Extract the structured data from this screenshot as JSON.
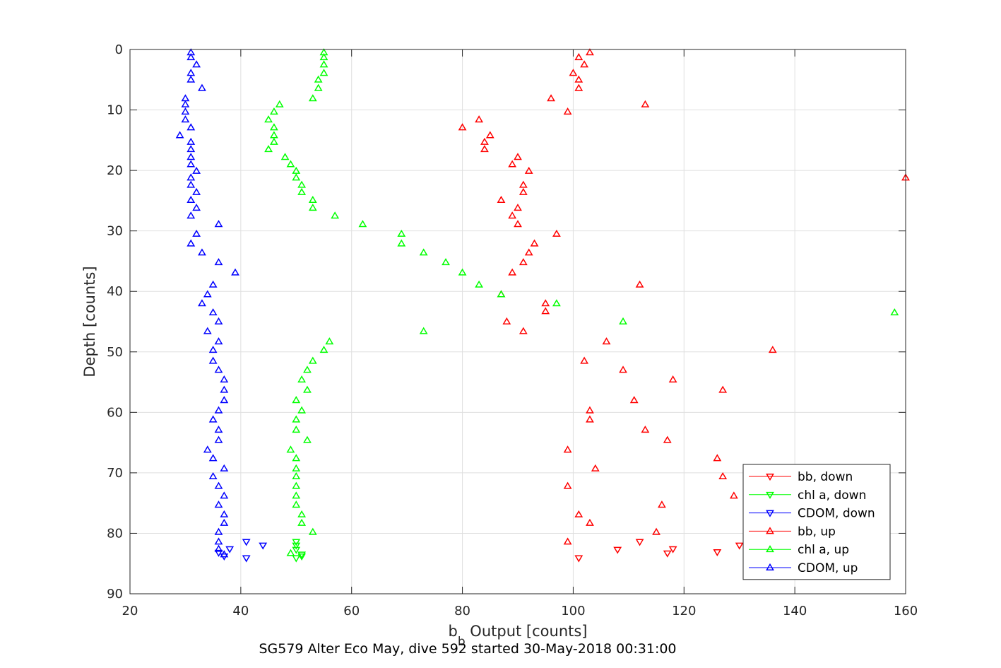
{
  "chart_data": {
    "type": "scatter",
    "title": "",
    "xlabel": {
      "main": "b",
      "sub": "b",
      "rest": " Output [counts]"
    },
    "ylabel": "Depth [counts]",
    "caption": "SG579 Alter Eco May, dive 592 started 30-May-2018 00:31:00",
    "xlim": [
      20,
      160
    ],
    "ylim": [
      0,
      90
    ],
    "y_reversed": true,
    "grid": true,
    "xticks": [
      "20",
      "40",
      "60",
      "80",
      "100",
      "120",
      "140",
      "160"
    ],
    "yticks": [
      "0",
      "10",
      "20",
      "30",
      "40",
      "50",
      "60",
      "70",
      "80",
      "90"
    ],
    "legend_position": "bottom-right",
    "series": [
      {
        "name": "bb, down",
        "color": "#ff0000",
        "marker": "triangle-down",
        "points": [
          [
            101,
            84.1
          ],
          [
            108,
            82.7
          ],
          [
            112,
            81.4
          ],
          [
            118,
            82.6
          ],
          [
            117,
            83.3
          ],
          [
            126,
            83.1
          ],
          [
            130,
            82
          ]
        ]
      },
      {
        "name": "chl a, down",
        "color": "#00ff00",
        "marker": "triangle-down",
        "points": [
          [
            50,
            84.1
          ],
          [
            51,
            83.5
          ],
          [
            50,
            82.7
          ],
          [
            50,
            82
          ],
          [
            50,
            81.4
          ],
          [
            51,
            83.8
          ]
        ]
      },
      {
        "name": "CDOM, down",
        "color": "#0000ff",
        "marker": "triangle-down",
        "points": [
          [
            41,
            84.1
          ],
          [
            44,
            82
          ],
          [
            38,
            82.6
          ],
          [
            41,
            81.4
          ],
          [
            37,
            83.8
          ],
          [
            36,
            83.2
          ]
        ]
      },
      {
        "name": "bb, up",
        "color": "#ff0000",
        "marker": "triangle-up",
        "points": [
          [
            103,
            0.5
          ],
          [
            101,
            1.3
          ],
          [
            102,
            2.5
          ],
          [
            100,
            3.9
          ],
          [
            101,
            5
          ],
          [
            101,
            6.4
          ],
          [
            96,
            8.1
          ],
          [
            113,
            9.1
          ],
          [
            99,
            10.3
          ],
          [
            83,
            11.6
          ],
          [
            80,
            12.9
          ],
          [
            85,
            14.2
          ],
          [
            84,
            15.3
          ],
          [
            84,
            16.5
          ],
          [
            90,
            17.8
          ],
          [
            89,
            19
          ],
          [
            92,
            20.1
          ],
          [
            160,
            21.2
          ],
          [
            91,
            22.4
          ],
          [
            91,
            23.6
          ],
          [
            87,
            24.9
          ],
          [
            90,
            26.2
          ],
          [
            89,
            27.5
          ],
          [
            90,
            28.9
          ],
          [
            97,
            30.5
          ],
          [
            93,
            32.1
          ],
          [
            92,
            33.6
          ],
          [
            91,
            35.2
          ],
          [
            89,
            36.9
          ],
          [
            112,
            38.9
          ],
          [
            87,
            40.5
          ],
          [
            95,
            42
          ],
          [
            95,
            43.3
          ],
          [
            88,
            45
          ],
          [
            91,
            46.6
          ],
          [
            106,
            48.3
          ],
          [
            136,
            49.7
          ],
          [
            102,
            51.5
          ],
          [
            109,
            53
          ],
          [
            118,
            54.6
          ],
          [
            127,
            56.3
          ],
          [
            111,
            58
          ],
          [
            103,
            59.7
          ],
          [
            103,
            61.2
          ],
          [
            113,
            62.9
          ],
          [
            117,
            64.6
          ],
          [
            99,
            66.2
          ],
          [
            126,
            67.6
          ],
          [
            104,
            69.3
          ],
          [
            127,
            70.6
          ],
          [
            99,
            72.2
          ],
          [
            129,
            73.8
          ],
          [
            116,
            75.3
          ],
          [
            101,
            76.9
          ],
          [
            103,
            78.3
          ],
          [
            115,
            79.8
          ],
          [
            99,
            81.4
          ]
        ]
      },
      {
        "name": "chl a, up",
        "color": "#00ff00",
        "marker": "triangle-up",
        "points": [
          [
            55,
            0.5
          ],
          [
            55,
            1.3
          ],
          [
            55,
            2.5
          ],
          [
            55,
            3.9
          ],
          [
            54,
            5
          ],
          [
            54,
            6.4
          ],
          [
            53,
            8.1
          ],
          [
            47,
            9.1
          ],
          [
            46,
            10.3
          ],
          [
            45,
            11.6
          ],
          [
            46,
            12.9
          ],
          [
            46,
            14.2
          ],
          [
            46,
            15.3
          ],
          [
            45,
            16.5
          ],
          [
            48,
            17.8
          ],
          [
            49,
            19
          ],
          [
            50,
            20.1
          ],
          [
            50,
            21.2
          ],
          [
            51,
            22.4
          ],
          [
            51,
            23.6
          ],
          [
            53,
            24.9
          ],
          [
            53,
            26.2
          ],
          [
            57,
            27.5
          ],
          [
            62,
            28.9
          ],
          [
            69,
            30.5
          ],
          [
            69,
            32.1
          ],
          [
            73,
            33.6
          ],
          [
            77,
            35.2
          ],
          [
            80,
            36.9
          ],
          [
            83,
            38.9
          ],
          [
            87,
            40.5
          ],
          [
            97,
            42
          ],
          [
            158,
            43.5
          ],
          [
            109,
            45
          ],
          [
            73,
            46.6
          ],
          [
            56,
            48.3
          ],
          [
            55,
            49.7
          ],
          [
            53,
            51.5
          ],
          [
            52,
            53
          ],
          [
            51,
            54.6
          ],
          [
            52,
            56.3
          ],
          [
            50,
            58
          ],
          [
            51,
            59.7
          ],
          [
            50,
            61.2
          ],
          [
            50,
            62.9
          ],
          [
            52,
            64.6
          ],
          [
            49,
            66.2
          ],
          [
            50,
            67.6
          ],
          [
            50,
            69.3
          ],
          [
            50,
            70.6
          ],
          [
            50,
            72.2
          ],
          [
            50,
            73.8
          ],
          [
            50,
            75.3
          ],
          [
            51,
            76.9
          ],
          [
            51,
            78.3
          ],
          [
            53,
            79.8
          ],
          [
            49,
            83.3
          ]
        ]
      },
      {
        "name": "CDOM, up",
        "color": "#0000ff",
        "marker": "triangle-up",
        "points": [
          [
            31,
            0.5
          ],
          [
            31,
            1.3
          ],
          [
            32,
            2.5
          ],
          [
            31,
            3.9
          ],
          [
            31,
            5
          ],
          [
            33,
            6.4
          ],
          [
            30,
            8.1
          ],
          [
            30,
            9.1
          ],
          [
            30,
            10.3
          ],
          [
            30,
            11.6
          ],
          [
            31,
            12.9
          ],
          [
            29,
            14.2
          ],
          [
            31,
            15.3
          ],
          [
            31,
            16.5
          ],
          [
            31,
            17.8
          ],
          [
            31,
            19
          ],
          [
            32,
            20.1
          ],
          [
            31,
            21.2
          ],
          [
            31,
            22.4
          ],
          [
            32,
            23.6
          ],
          [
            31,
            24.9
          ],
          [
            32,
            26.2
          ],
          [
            31,
            27.5
          ],
          [
            36,
            28.9
          ],
          [
            32,
            30.5
          ],
          [
            31,
            32.1
          ],
          [
            33,
            33.6
          ],
          [
            36,
            35.2
          ],
          [
            39,
            36.9
          ],
          [
            35,
            38.9
          ],
          [
            34,
            40.5
          ],
          [
            33,
            42
          ],
          [
            35,
            43.5
          ],
          [
            36,
            45
          ],
          [
            34,
            46.6
          ],
          [
            36,
            48.3
          ],
          [
            35,
            49.7
          ],
          [
            35,
            51.5
          ],
          [
            36,
            53
          ],
          [
            37,
            54.6
          ],
          [
            37,
            56.3
          ],
          [
            37,
            58
          ],
          [
            36,
            59.7
          ],
          [
            35,
            61.2
          ],
          [
            36,
            62.9
          ],
          [
            36,
            64.6
          ],
          [
            34,
            66.2
          ],
          [
            35,
            67.6
          ],
          [
            37,
            69.3
          ],
          [
            35,
            70.6
          ],
          [
            36,
            72.2
          ],
          [
            37,
            73.8
          ],
          [
            36,
            75.3
          ],
          [
            37,
            76.9
          ],
          [
            37,
            78.3
          ],
          [
            36,
            79.8
          ],
          [
            36,
            81.4
          ],
          [
            36,
            82.6
          ],
          [
            37,
            83.5
          ]
        ]
      }
    ]
  }
}
